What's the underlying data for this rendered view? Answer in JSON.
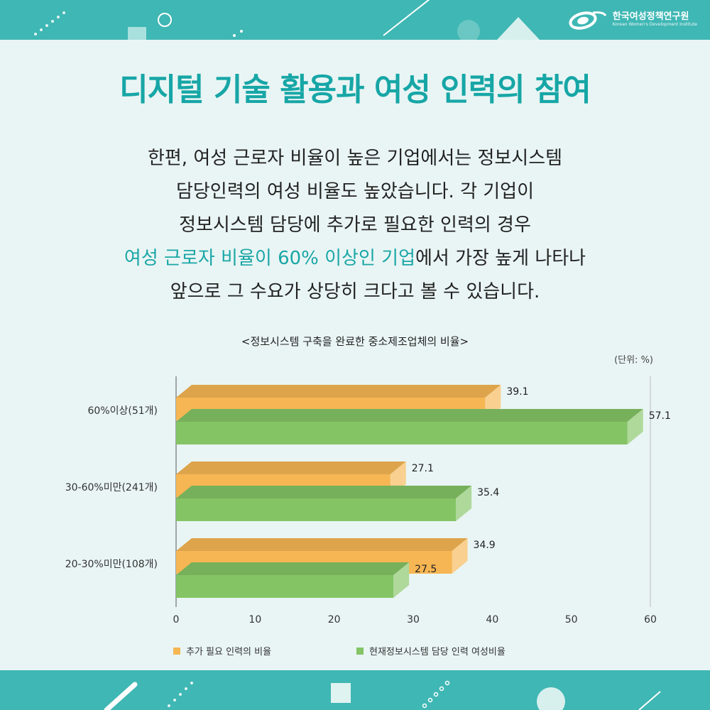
{
  "header": {
    "org_name": "한국여성정책연구원",
    "org_sub": "Korean Women's Development Institute"
  },
  "title": "디지털 기술 활용과 여성 인력의 참여",
  "body": {
    "line1": "한편, 여성 근로자 비율이 높은 기업에서는 정보시스템",
    "line2": "담당인력의 여성 비율도 높았습니다. 각 기업이",
    "line3": "정보시스템 담당에 추가로 필요한 인력의 경우",
    "line4_highlight": "여성 근로자 비율이 60% 이상인 기업",
    "line4_rest": "에서 가장 높게 나타나",
    "line5": "앞으로 그 수요가 상당히 크다고 볼 수 있습니다."
  },
  "colors": {
    "brand": "#3fb7b4",
    "title": "#17a6a6",
    "orange": "#f6b653",
    "green": "#84c465"
  },
  "chart_data": {
    "type": "bar",
    "orientation": "horizontal",
    "title": "<정보시스템 구축을 완료한 중소제조업체의 비율>",
    "unit": "(단위: %)",
    "categories": [
      "60%이상(51개)",
      "30-60%미만(241개)",
      "20-30%미만(108개)"
    ],
    "series": [
      {
        "name": "추가 필요 인력의 비율",
        "values": [
          39.1,
          27.1,
          34.9
        ],
        "color": "#f6b653"
      },
      {
        "name": "현재정보시스템 담당 인력 여성비율",
        "values": [
          57.1,
          35.4,
          27.5
        ],
        "color": "#84c465"
      }
    ],
    "data_labels": {
      "s0": [
        "39.1",
        "27.1",
        "34.9"
      ],
      "s1": [
        "57.1",
        "35.4",
        "27.5"
      ]
    },
    "x_ticks": [
      0,
      10,
      20,
      30,
      40,
      50,
      60
    ],
    "x_tick_labels": [
      "0",
      "10",
      "20",
      "30",
      "40",
      "50",
      "60"
    ],
    "xlim": [
      0,
      60
    ],
    "legend_position": "bottom"
  }
}
